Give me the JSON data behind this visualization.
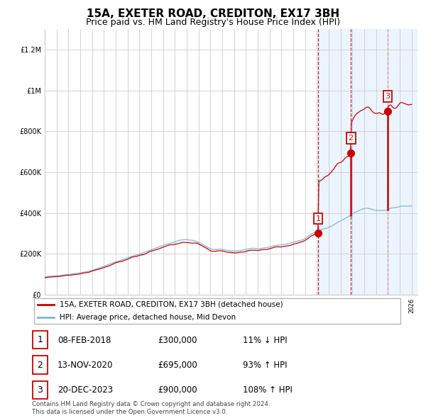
{
  "title": "15A, EXETER ROAD, CREDITON, EX17 3BH",
  "subtitle": "Price paid vs. HM Land Registry's House Price Index (HPI)",
  "ylim": [
    0,
    1300000
  ],
  "yticks": [
    0,
    200000,
    400000,
    600000,
    800000,
    1000000,
    1200000
  ],
  "ytick_labels": [
    "£0",
    "£200K",
    "£400K",
    "£600K",
    "£800K",
    "£1M",
    "£1.2M"
  ],
  "x_start_year": 1995,
  "x_end_year": 2026,
  "sale_years": [
    2018.1,
    2020.87,
    2023.97
  ],
  "sale_prices": [
    300000,
    695000,
    900000
  ],
  "sale_labels": [
    "1",
    "2",
    "3"
  ],
  "sale_info": [
    {
      "num": "1",
      "date": "08-FEB-2018",
      "price": "£300,000",
      "pct": "11% ↓ HPI"
    },
    {
      "num": "2",
      "date": "13-NOV-2020",
      "price": "£695,000",
      "pct": "93% ↑ HPI"
    },
    {
      "num": "3",
      "date": "20-DEC-2023",
      "price": "£900,000",
      "pct": "108% ↑ HPI"
    }
  ],
  "legend_line1": "15A, EXETER ROAD, CREDITON, EX17 3BH (detached house)",
  "legend_line2": "HPI: Average price, detached house, Mid Devon",
  "footer": "Contains HM Land Registry data © Crown copyright and database right 2024.\nThis data is licensed under the Open Government Licence v3.0.",
  "hpi_color": "#7ab8d9",
  "sale_color": "#cc0000",
  "bg_shade_color": "#ddeeff",
  "grid_color": "#cccccc",
  "title_fontsize": 11,
  "subtitle_fontsize": 9,
  "tick_fontsize": 7
}
